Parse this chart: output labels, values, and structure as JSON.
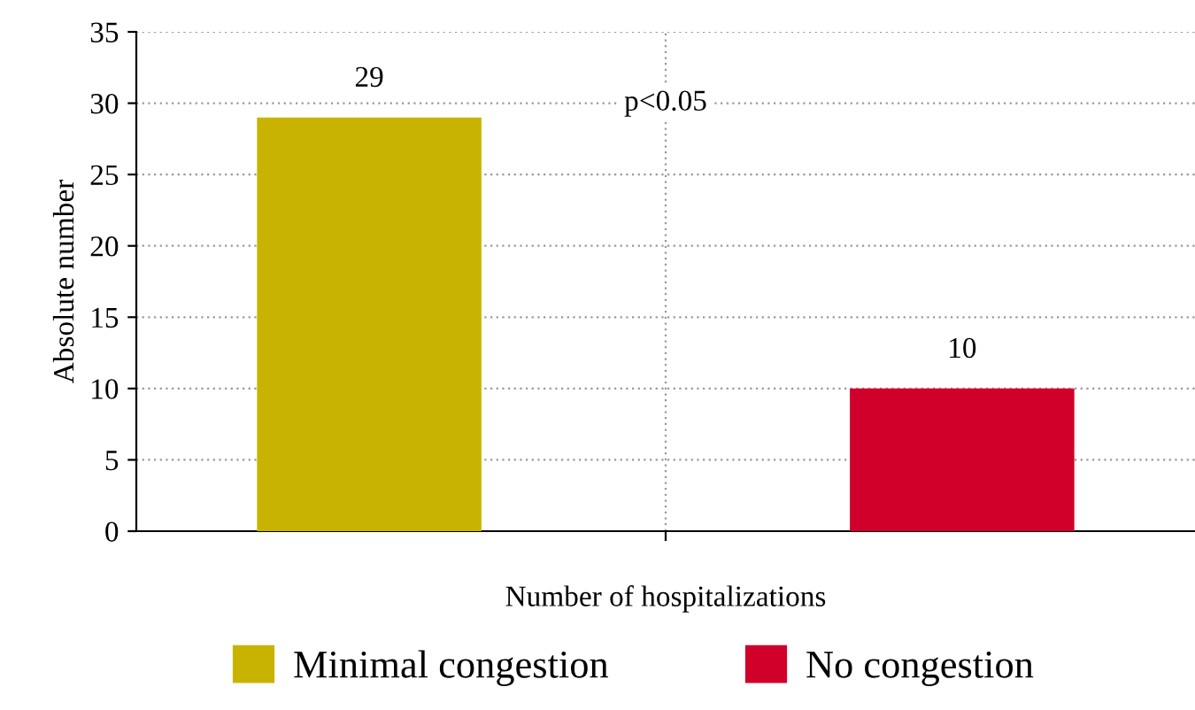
{
  "chart_data": {
    "type": "bar",
    "categories": [
      "Number of hospitalizations"
    ],
    "series": [
      {
        "name": "Minimal congestion",
        "color": "#c8b400",
        "values": [
          29
        ]
      },
      {
        "name": "No congestion",
        "color": "#d0002a",
        "values": [
          10
        ]
      }
    ],
    "ylabel": "Absolute number",
    "ylim": [
      0,
      35
    ],
    "yticks": [
      0,
      5,
      10,
      15,
      20,
      25,
      30,
      35
    ],
    "grid": true,
    "legend": "bottom",
    "data_labels": true,
    "annotations": [
      "p<0.05"
    ]
  }
}
